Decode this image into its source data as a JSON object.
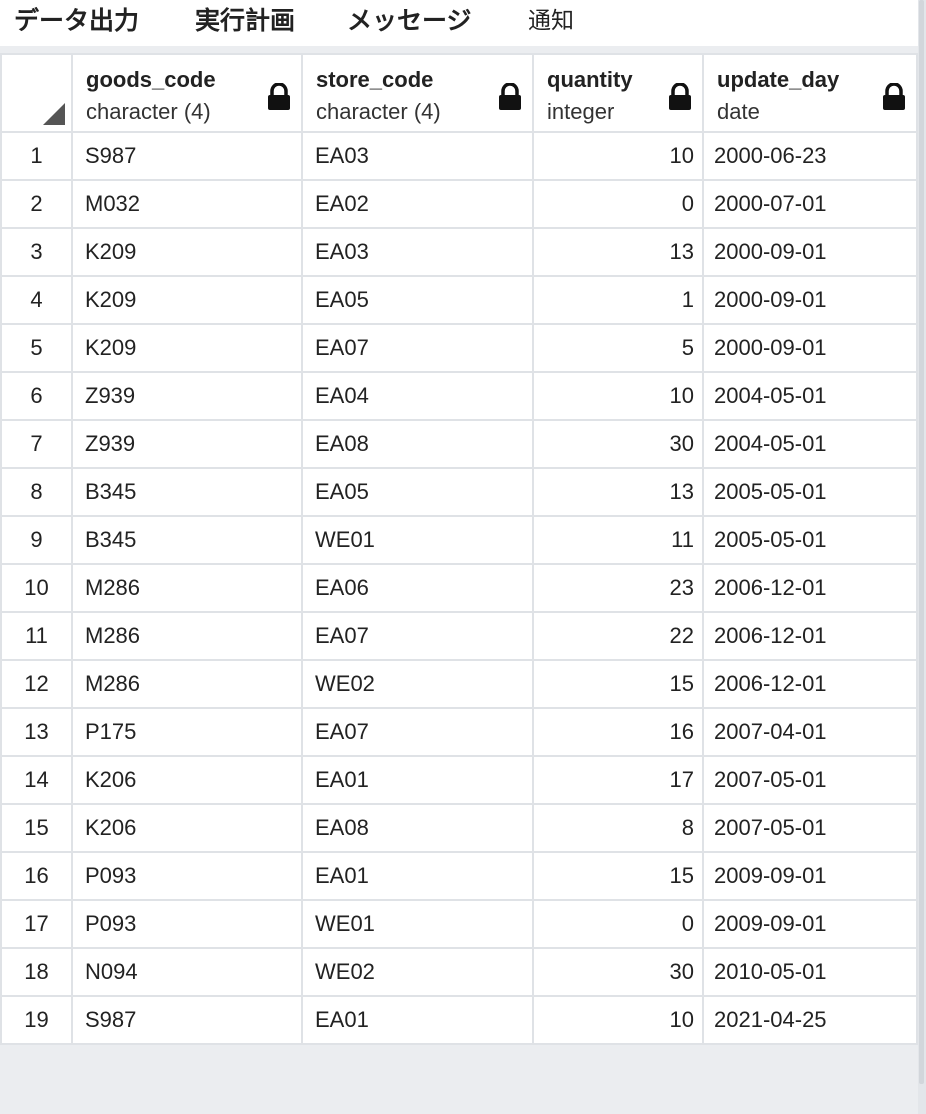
{
  "tabs": [
    {
      "label": "データ出力"
    },
    {
      "label": "実行計画"
    },
    {
      "label": "メッセージ"
    },
    {
      "label": "通知"
    }
  ],
  "columns": [
    {
      "name": "goods_code",
      "type": "character (4)"
    },
    {
      "name": "store_code",
      "type": "character (4)"
    },
    {
      "name": "quantity",
      "type": "integer"
    },
    {
      "name": "update_day",
      "type": "date"
    }
  ],
  "rows": [
    {
      "n": "1",
      "goods": "S987",
      "store": "EA03",
      "qty": "10",
      "day": "2000-06-23"
    },
    {
      "n": "2",
      "goods": "M032",
      "store": "EA02",
      "qty": "0",
      "day": "2000-07-01"
    },
    {
      "n": "3",
      "goods": "K209",
      "store": "EA03",
      "qty": "13",
      "day": "2000-09-01"
    },
    {
      "n": "4",
      "goods": "K209",
      "store": "EA05",
      "qty": "1",
      "day": "2000-09-01"
    },
    {
      "n": "5",
      "goods": "K209",
      "store": "EA07",
      "qty": "5",
      "day": "2000-09-01"
    },
    {
      "n": "6",
      "goods": "Z939",
      "store": "EA04",
      "qty": "10",
      "day": "2004-05-01"
    },
    {
      "n": "7",
      "goods": "Z939",
      "store": "EA08",
      "qty": "30",
      "day": "2004-05-01"
    },
    {
      "n": "8",
      "goods": "B345",
      "store": "EA05",
      "qty": "13",
      "day": "2005-05-01"
    },
    {
      "n": "9",
      "goods": "B345",
      "store": "WE01",
      "qty": "11",
      "day": "2005-05-01"
    },
    {
      "n": "10",
      "goods": "M286",
      "store": "EA06",
      "qty": "23",
      "day": "2006-12-01"
    },
    {
      "n": "11",
      "goods": "M286",
      "store": "EA07",
      "qty": "22",
      "day": "2006-12-01"
    },
    {
      "n": "12",
      "goods": "M286",
      "store": "WE02",
      "qty": "15",
      "day": "2006-12-01"
    },
    {
      "n": "13",
      "goods": "P175",
      "store": "EA07",
      "qty": "16",
      "day": "2007-04-01"
    },
    {
      "n": "14",
      "goods": "K206",
      "store": "EA01",
      "qty": "17",
      "day": "2007-05-01"
    },
    {
      "n": "15",
      "goods": "K206",
      "store": "EA08",
      "qty": "8",
      "day": "2007-05-01"
    },
    {
      "n": "16",
      "goods": "P093",
      "store": "EA01",
      "qty": "15",
      "day": "2009-09-01"
    },
    {
      "n": "17",
      "goods": "P093",
      "store": "WE01",
      "qty": "0",
      "day": "2009-09-01"
    },
    {
      "n": "18",
      "goods": "N094",
      "store": "WE02",
      "qty": "30",
      "day": "2010-05-01"
    },
    {
      "n": "19",
      "goods": "S987",
      "store": "EA01",
      "qty": "10",
      "day": "2021-04-25"
    }
  ]
}
